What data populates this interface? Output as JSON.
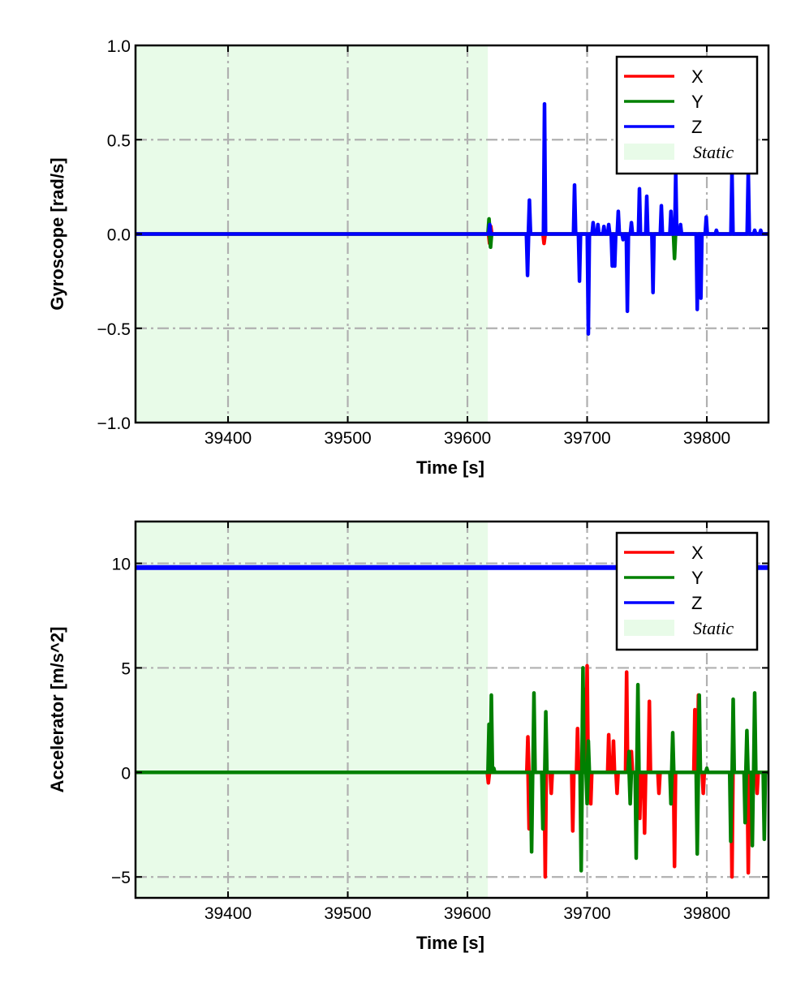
{
  "chart_data": [
    {
      "type": "line",
      "title": "",
      "xlabel": "Time [s]",
      "ylabel": "Gyroscope [rad/s]",
      "xlim": [
        39322.7,
        39851.5
      ],
      "ylim": [
        -1.0,
        1.0
      ],
      "xticks": [
        39400,
        39500,
        39600,
        39700,
        39800
      ],
      "xtick_labels": [
        "39400",
        "39500",
        "39600",
        "39700",
        "39800"
      ],
      "yticks": [
        1.0,
        0.5,
        0.0,
        -0.5,
        -1.0
      ],
      "ytick_labels": [
        "1.0",
        "0.5",
        "0.0",
        "−0.5",
        "−1.0"
      ],
      "grid": true,
      "legend_position": "top-right",
      "static_span": [
        39322.7,
        39617
      ],
      "static_label": "Static",
      "static_color": "#e8fbe8",
      "series": [
        {
          "name": "X",
          "color": "#ff0000",
          "baseline": 0,
          "spikes": [
            [
              39618.5,
              -0.05
            ],
            [
              39619.5,
              0.04
            ],
            [
              39664,
              -0.05
            ]
          ]
        },
        {
          "name": "Y",
          "color": "#008000",
          "baseline": 0,
          "spikes": [
            [
              39618,
              0.08
            ],
            [
              39619.3,
              -0.07
            ],
            [
              39773,
              -0.13
            ]
          ]
        },
        {
          "name": "Z",
          "color": "#0000ff",
          "baseline": 0,
          "spikes": [
            [
              39618.6,
              0.05
            ],
            [
              39650.2,
              -0.22
            ],
            [
              39651.8,
              0.18
            ],
            [
              39664.4,
              0.69
            ],
            [
              39689.5,
              0.26
            ],
            [
              39693.6,
              -0.25
            ],
            [
              39701,
              -0.53
            ],
            [
              39705,
              0.06
            ],
            [
              39709,
              0.05
            ],
            [
              39714,
              0.04
            ],
            [
              39718,
              0.05
            ],
            [
              39721,
              -0.17
            ],
            [
              39723,
              -0.17
            ],
            [
              39726,
              0.12
            ],
            [
              39730,
              -0.03
            ],
            [
              39733.6,
              -0.41
            ],
            [
              39737,
              0.06
            ],
            [
              39743.7,
              0.24
            ],
            [
              39749.8,
              0.2
            ],
            [
              39755,
              -0.31
            ],
            [
              39762,
              0.15
            ],
            [
              39770,
              0.12
            ],
            [
              39774,
              0.32
            ],
            [
              39778,
              0.05
            ],
            [
              39792,
              -0.4
            ],
            [
              39795,
              -0.34
            ],
            [
              39799.5,
              0.09
            ],
            [
              39808,
              0.02
            ],
            [
              39821,
              0.34
            ],
            [
              39834.6,
              0.34
            ],
            [
              39840,
              0.02
            ],
            [
              39845,
              0.02
            ]
          ]
        }
      ]
    },
    {
      "type": "line",
      "title": "",
      "xlabel": "Time [s]",
      "ylabel": "Accelerator [m/s^2]",
      "xlim": [
        39322.7,
        39851.5
      ],
      "ylim": [
        -6,
        12
      ],
      "xticks": [
        39400,
        39500,
        39600,
        39700,
        39800
      ],
      "xtick_labels": [
        "39400",
        "39500",
        "39600",
        "39700",
        "39800"
      ],
      "yticks": [
        10,
        5,
        0,
        -5
      ],
      "ytick_labels": [
        "10",
        "5",
        "0",
        "−5"
      ],
      "grid": true,
      "legend_position": "top-right",
      "static_span": [
        39322.7,
        39617
      ],
      "static_label": "Static",
      "static_color": "#e8fbe8",
      "series": [
        {
          "name": "X",
          "color": "#ff0000",
          "baseline": 0,
          "spikes": [
            [
              39617.5,
              -0.5
            ],
            [
              39650.5,
              1.7
            ],
            [
              39651.5,
              -2.7
            ],
            [
              39665,
              -5.0
            ],
            [
              39670,
              -1.0
            ],
            [
              39688,
              -2.8
            ],
            [
              39692,
              2.1
            ],
            [
              39697,
              4.0
            ],
            [
              39700,
              5.1
            ],
            [
              39703,
              -1.5
            ],
            [
              39718,
              1.8
            ],
            [
              39722,
              1.5
            ],
            [
              39725,
              -1.0
            ],
            [
              39733,
              4.8
            ],
            [
              39737,
              1.0
            ],
            [
              39744,
              -2.2
            ],
            [
              39748,
              -2.9
            ],
            [
              39752,
              3.4
            ],
            [
              39760,
              -1.0
            ],
            [
              39773,
              -4.5
            ],
            [
              39790,
              3.0
            ],
            [
              39793,
              3.7
            ],
            [
              39797,
              -1.0
            ],
            [
              39821,
              -5.0
            ],
            [
              39834.6,
              -4.8
            ],
            [
              39842,
              -1.0
            ]
          ]
        },
        {
          "name": "Y",
          "color": "#008000",
          "baseline": 0,
          "spikes": [
            [
              39618,
              2.3
            ],
            [
              39620,
              3.7
            ],
            [
              39622,
              0.2
            ],
            [
              39653.6,
              -3.8
            ],
            [
              39655.6,
              3.8
            ],
            [
              39663,
              -2.7
            ],
            [
              39665.5,
              2.9
            ],
            [
              39695,
              -4.7
            ],
            [
              39696.5,
              5.0
            ],
            [
              39700,
              -1.5
            ],
            [
              39701,
              1.5
            ],
            [
              39735,
              1.0
            ],
            [
              39736,
              -1.5
            ],
            [
              39741,
              -4.1
            ],
            [
              39742.4,
              4.2
            ],
            [
              39770,
              -1.5
            ],
            [
              39771.5,
              1.9
            ],
            [
              39792,
              -3.9
            ],
            [
              39793.7,
              3.7
            ],
            [
              39800,
              0.2
            ],
            [
              39820,
              -3.3
            ],
            [
              39822,
              3.5
            ],
            [
              39832,
              -2.4
            ],
            [
              39833.5,
              2.0
            ],
            [
              39838,
              -3.5
            ],
            [
              39840,
              3.8
            ],
            [
              39848,
              -3.2
            ]
          ]
        },
        {
          "name": "Z",
          "color": "#0000ff",
          "baseline": 9.8,
          "spikes": []
        }
      ]
    }
  ]
}
